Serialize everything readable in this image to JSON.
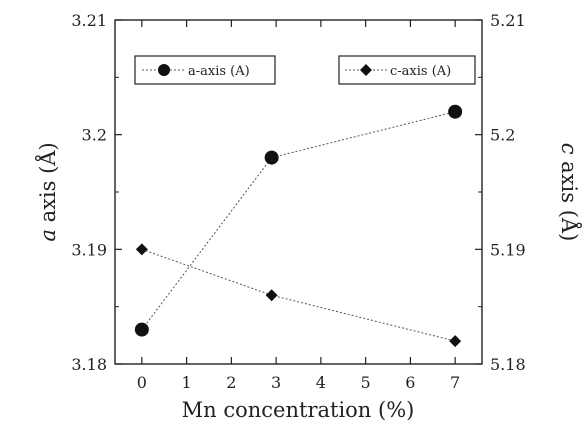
{
  "chart_data": {
    "type": "line",
    "title": "",
    "xlabel": "Mn concentration (%)",
    "ylabel_left_prefix": "a",
    "ylabel_left_suffix": " axis (Å)",
    "ylabel_right_prefix": "c",
    "ylabel_right_suffix": " axis (Å)",
    "xlim": [
      -0.6,
      7.6
    ],
    "xticks": [
      0,
      1,
      2,
      3,
      4,
      5,
      6,
      7
    ],
    "ylim_left": [
      3.18,
      3.21
    ],
    "yticks_left": [
      "3.18",
      "3.19",
      "3.2",
      "3.21"
    ],
    "ylim_right": [
      5.18,
      5.21
    ],
    "yticks_right": [
      "5.18",
      "5.19",
      "5.2",
      "5.21"
    ],
    "grid": false,
    "legend": "top",
    "series": [
      {
        "name": "a-axis (A)",
        "axis": "left",
        "marker": "circle",
        "x": [
          0,
          2.9,
          7
        ],
        "y": [
          3.183,
          3.198,
          3.202
        ]
      },
      {
        "name": "c-axis (A)",
        "axis": "right",
        "marker": "diamond",
        "x": [
          0,
          2.9,
          7
        ],
        "y": [
          5.19,
          5.186,
          5.182
        ]
      }
    ],
    "colors": {
      "line": "#555555",
      "marker": "#111111",
      "frame": "#222222"
    }
  }
}
